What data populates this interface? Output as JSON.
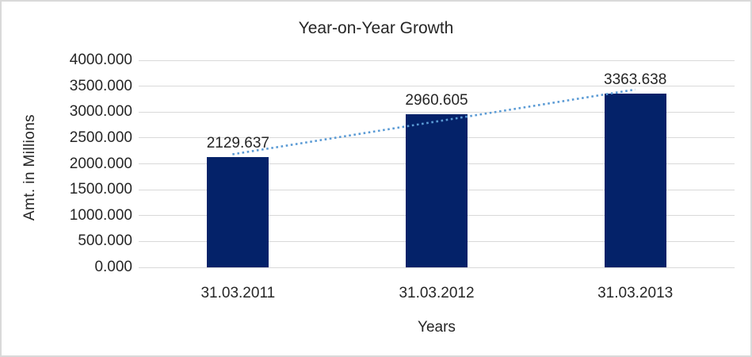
{
  "window": {
    "background": "#ffffff",
    "border_color": "#d9d9d9"
  },
  "chart_data": {
    "type": "bar",
    "title": "Year-on-Year Growth",
    "xlabel": "Years",
    "ylabel": "Amt. in Millions",
    "categories": [
      "31.03.2011",
      "31.03.2012",
      "31.03.2013"
    ],
    "values": [
      2129.637,
      2960.605,
      3363.638
    ],
    "data_labels": [
      "2129.637",
      "2960.605",
      "3363.638"
    ],
    "ylim": [
      0,
      4000
    ],
    "ytick_step": 500,
    "ytick_labels": [
      "0.000",
      "500.000",
      "1000.000",
      "1500.000",
      "2000.000",
      "2500.000",
      "3000.000",
      "3500.000",
      "4000.000"
    ],
    "grid": "horizontal",
    "legend": "none",
    "trendline": {
      "type": "linear",
      "style": "dotted"
    },
    "colors": {
      "bar": "#042269",
      "trendline": "#5b9bd5",
      "gridline": "#d9d9d9",
      "text": "#262626"
    }
  }
}
